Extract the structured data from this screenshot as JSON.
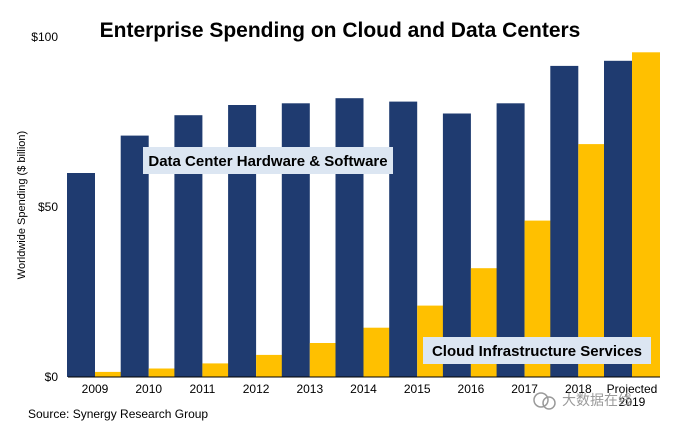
{
  "chart_data": {
    "type": "bar",
    "title": "Enterprise Spending on Cloud and Data Centers",
    "ylabel": "Worldwide Spending ($ billion)",
    "xlabel": "",
    "ylim": [
      0,
      100
    ],
    "yticks": [
      "$0",
      "$50",
      "$100"
    ],
    "categories": [
      "2009",
      "2010",
      "2011",
      "2012",
      "2013",
      "2014",
      "2015",
      "2016",
      "2017",
      "2018",
      "Projected 2019"
    ],
    "series": [
      {
        "name": "Data Center Hardware & Software",
        "color": "#1f3b70",
        "values": [
          60,
          71,
          77,
          80,
          80.5,
          82,
          81,
          77.5,
          80.5,
          91.5,
          93
        ]
      },
      {
        "name": "Cloud Infrastructure Services",
        "color": "#ffc000",
        "values": [
          1.5,
          2.5,
          4,
          6.5,
          10,
          14.5,
          21,
          32,
          46,
          68.5,
          95.5
        ]
      }
    ],
    "grid": false,
    "label_bg": "#dce6f2"
  },
  "source": "Source: Synergy Research Group",
  "watermark": "大数据在线"
}
